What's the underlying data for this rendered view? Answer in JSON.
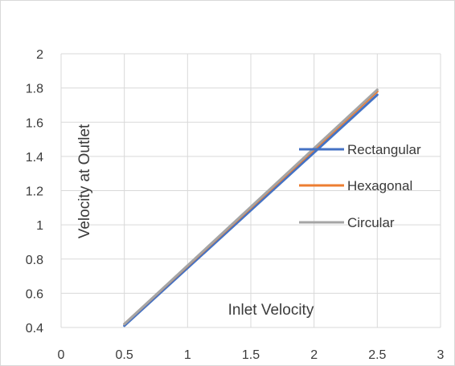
{
  "chart_data": {
    "type": "line",
    "title": "",
    "xlabel": "Inlet Velocity",
    "ylabel": "Velocity at Outlet",
    "xlim": [
      0,
      3
    ],
    "ylim": [
      0.4,
      2
    ],
    "x_ticks": [
      0,
      0.5,
      1,
      1.5,
      2,
      2.5,
      3
    ],
    "y_ticks": [
      0.4,
      0.6,
      0.8,
      1,
      1.2,
      1.4,
      1.6,
      1.8,
      2
    ],
    "grid": true,
    "legend_position": "right",
    "series": [
      {
        "name": "Rectangular",
        "color": "#4472C4",
        "x": [
          0.5,
          2.5
        ],
        "y": [
          0.41,
          1.76
        ]
      },
      {
        "name": "Hexagonal",
        "color": "#ED7D31",
        "x": [
          0.5,
          2.5
        ],
        "y": [
          0.42,
          1.78
        ]
      },
      {
        "name": "Circular",
        "color": "#A5A5A5",
        "x": [
          0.5,
          2.5
        ],
        "y": [
          0.42,
          1.79
        ]
      }
    ]
  }
}
